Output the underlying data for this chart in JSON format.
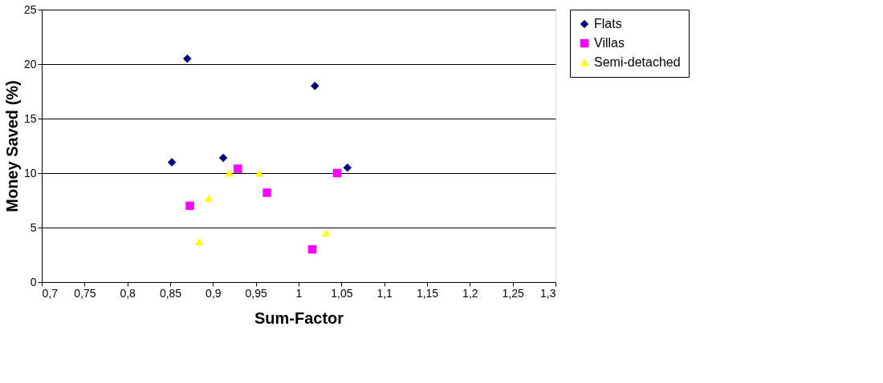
{
  "chart_data": {
    "type": "scatter",
    "xlabel": "Sum-Factor",
    "ylabel": "Money Saved (%)",
    "xlim": [
      0.7,
      1.3
    ],
    "ylim": [
      0,
      25
    ],
    "xticks": [
      {
        "value": 0.7,
        "label": "0,7"
      },
      {
        "value": 0.75,
        "label": "0,75"
      },
      {
        "value": 0.8,
        "label": "0,8"
      },
      {
        "value": 0.85,
        "label": "0,85"
      },
      {
        "value": 0.9,
        "label": "0,9"
      },
      {
        "value": 0.95,
        "label": "0,95"
      },
      {
        "value": 1,
        "label": "1"
      },
      {
        "value": 1.05,
        "label": "1,05"
      },
      {
        "value": 1.1,
        "label": "1,1"
      },
      {
        "value": 1.15,
        "label": "1,15"
      },
      {
        "value": 1.2,
        "label": "1,2"
      },
      {
        "value": 1.25,
        "label": "1,25"
      },
      {
        "value": 1.3,
        "label": "1,3"
      }
    ],
    "yticks": [
      0,
      5,
      10,
      15,
      20,
      25
    ],
    "grid": "y",
    "legend": "right",
    "series": [
      {
        "name": "Flats",
        "color": "#000080",
        "marker": "diamond",
        "x": [
          0.852,
          0.87,
          0.912,
          1.019,
          1.057
        ],
        "values": [
          11,
          20.5,
          11.4,
          18,
          10.5
        ]
      },
      {
        "name": "Villas",
        "color": "#ff00ff",
        "marker": "square",
        "x": [
          0.873,
          0.929,
          0.963,
          1.016,
          1.045
        ],
        "values": [
          7,
          10.4,
          8.2,
          3,
          10
        ]
      },
      {
        "name": "Semi-detached",
        "color": "#ffff00",
        "marker": "triangle",
        "x": [
          0.884,
          0.895,
          0.919,
          0.954,
          1.032
        ],
        "values": [
          3.7,
          7.7,
          10,
          10,
          4.5
        ]
      }
    ]
  }
}
